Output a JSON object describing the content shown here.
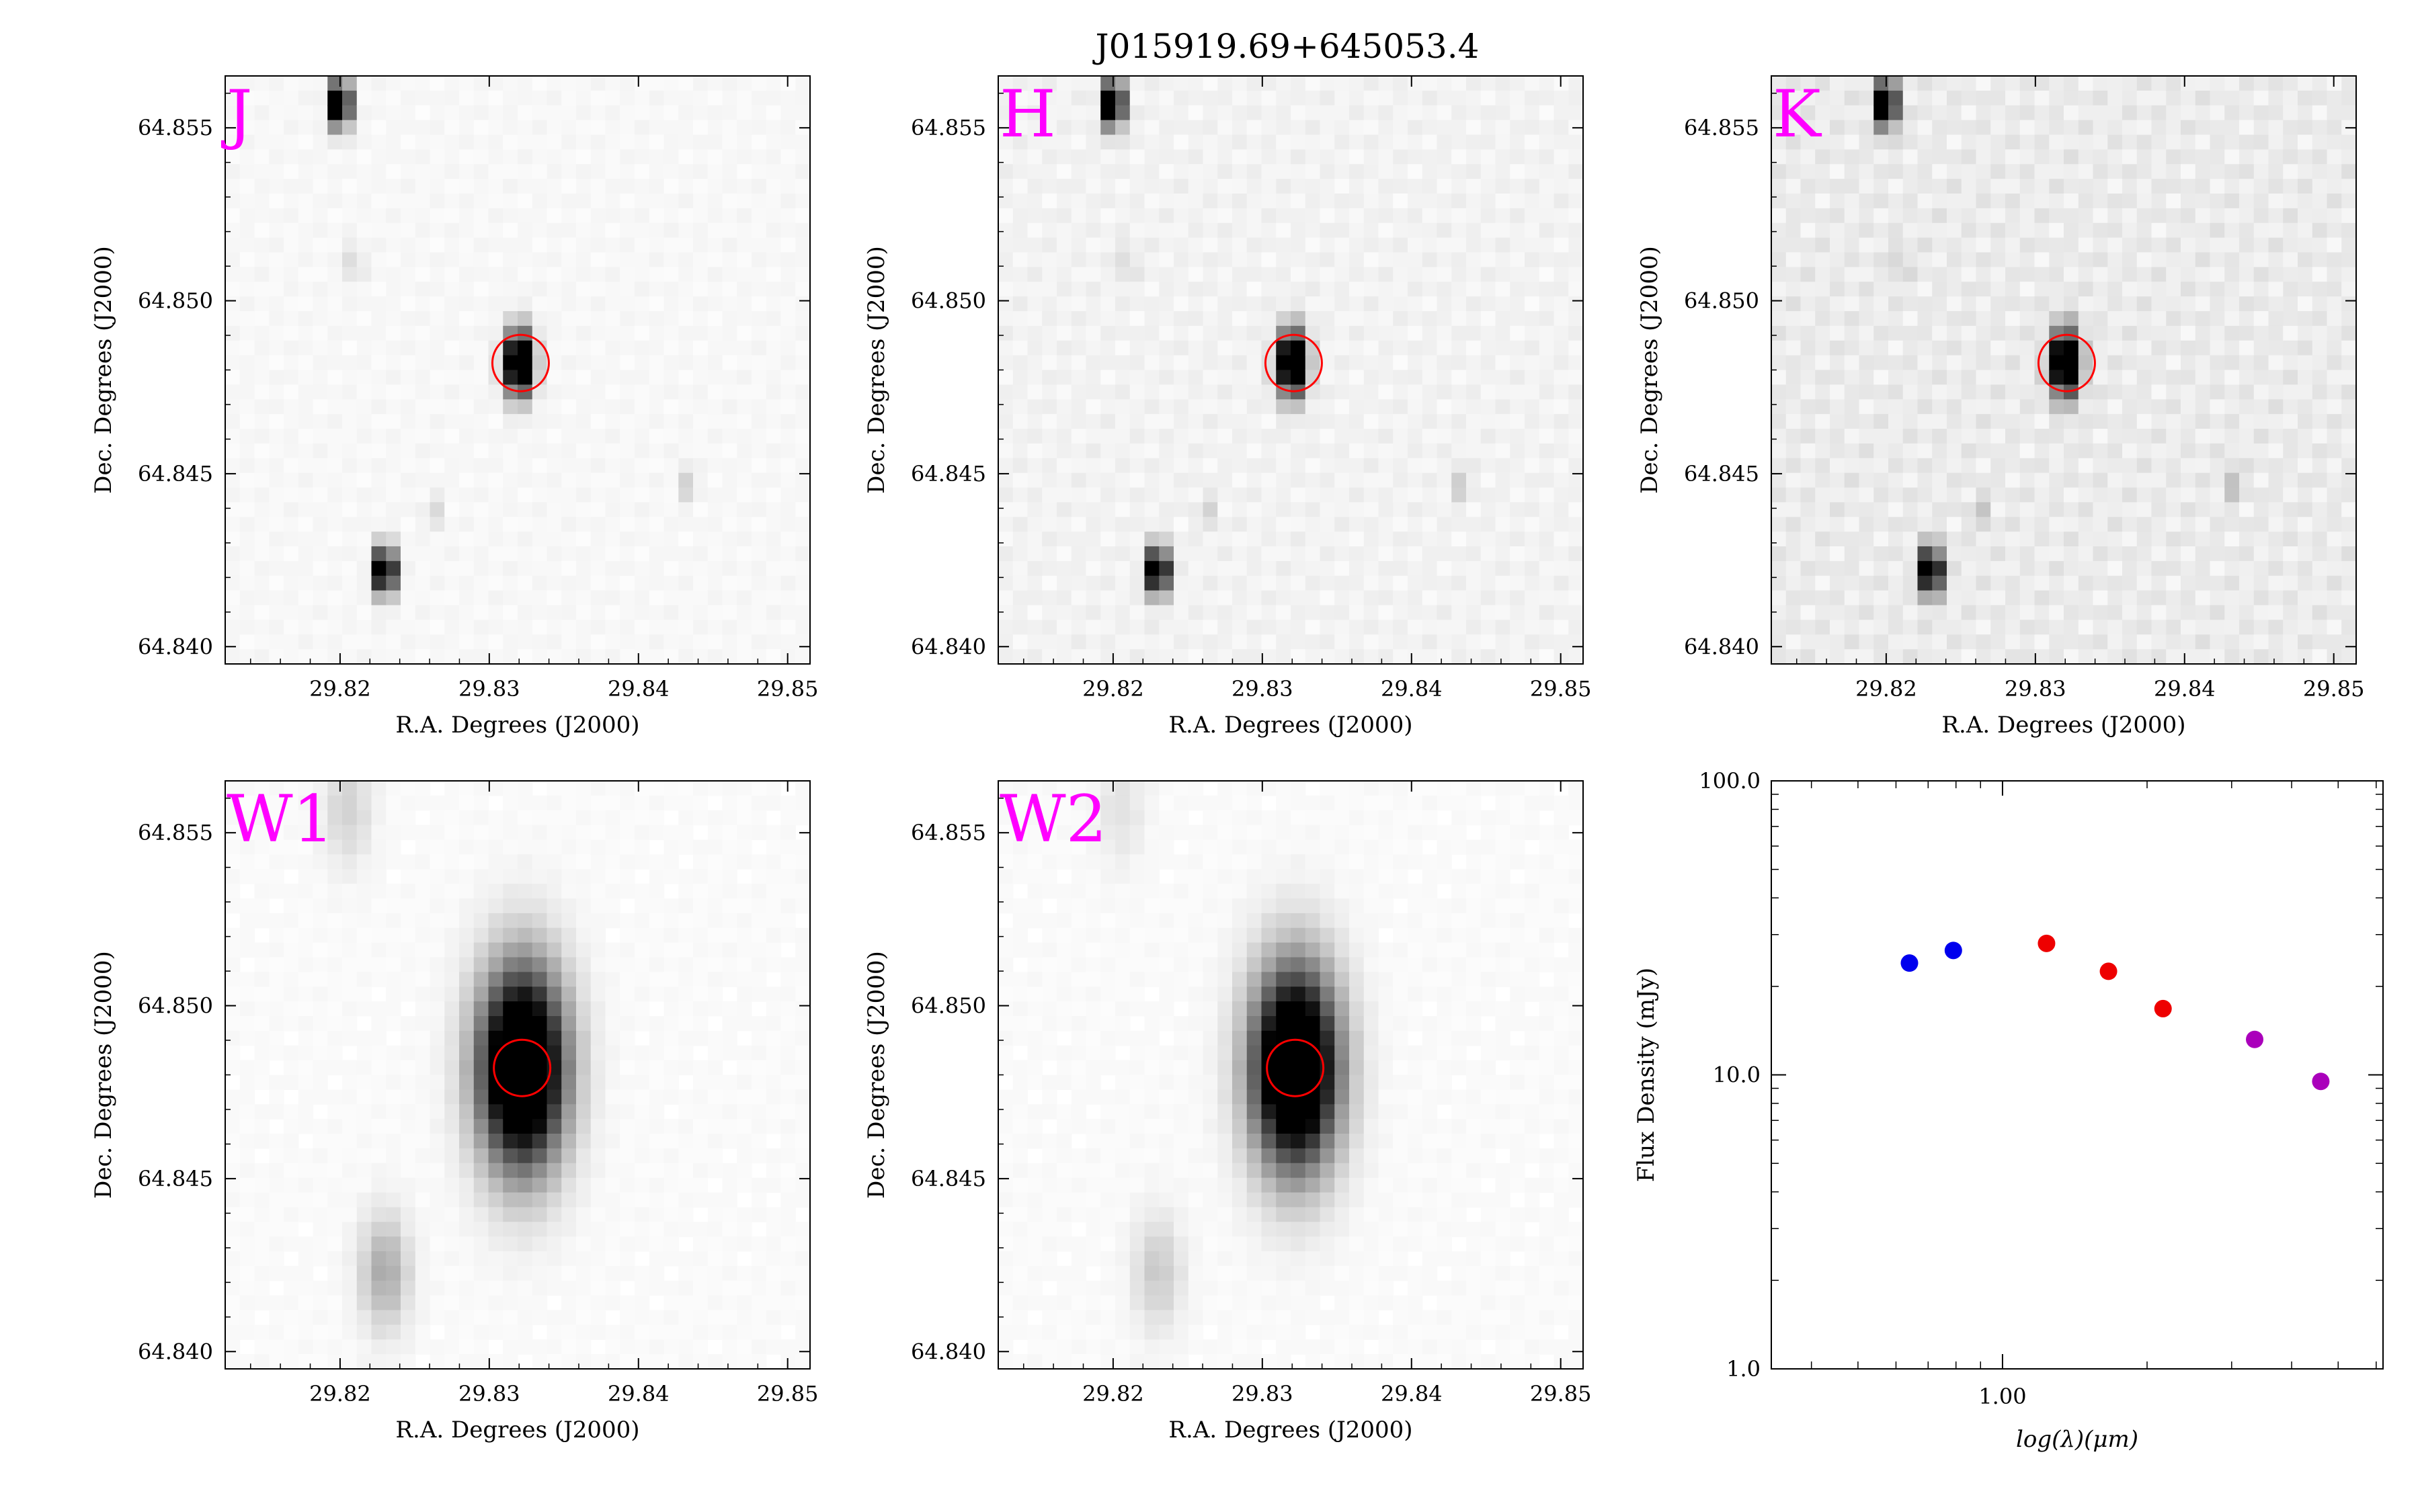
{
  "title": "J015919.69+645053.4",
  "image_panels": [
    {
      "band": "J",
      "xlabel": "R.A. Degrees (J2000)",
      "ylabel": "Dec. Degrees (J2000)",
      "xlim": [
        29.8123,
        29.8515
      ],
      "ylim": [
        64.8395,
        64.8565
      ],
      "xticks": [
        "29.82",
        "29.83",
        "29.84",
        "29.85"
      ],
      "yticks": [
        "64.840",
        "64.845",
        "64.850",
        "64.855"
      ],
      "sources": [
        {
          "ra": 29.82,
          "dec": 64.8557,
          "strength": 1.0,
          "width": 0.00065
        },
        {
          "ra": 29.823,
          "dec": 64.8422,
          "strength": 1.0,
          "width": 0.00065
        },
        {
          "ra": 29.832,
          "dec": 64.8482,
          "strength": 1.0,
          "width": 0.0009
        },
        {
          "ra": 29.821,
          "dec": 64.8511,
          "strength": 0.12,
          "width": 0.0005
        },
        {
          "ra": 29.8262,
          "dec": 64.8439,
          "strength": 0.1,
          "width": 0.0005
        },
        {
          "ra": 29.8434,
          "dec": 64.8447,
          "strength": 0.12,
          "width": 0.0005
        }
      ],
      "background": 0.03,
      "target": {
        "ra": 29.8321,
        "dec": 64.8482
      }
    },
    {
      "band": "H",
      "xlabel": "R.A. Degrees (J2000)",
      "ylabel": "Dec. Degrees (J2000)",
      "xlim": [
        29.8123,
        29.8515
      ],
      "ylim": [
        64.8395,
        64.8565
      ],
      "xticks": [
        "29.82",
        "29.83",
        "29.84",
        "29.85"
      ],
      "yticks": [
        "64.840",
        "64.845",
        "64.850",
        "64.855"
      ],
      "sources": [
        {
          "ra": 29.82,
          "dec": 64.8557,
          "strength": 1.0,
          "width": 0.00065
        },
        {
          "ra": 29.823,
          "dec": 64.8422,
          "strength": 1.0,
          "width": 0.00065
        },
        {
          "ra": 29.832,
          "dec": 64.8482,
          "strength": 1.0,
          "width": 0.0009
        },
        {
          "ra": 29.821,
          "dec": 64.8511,
          "strength": 0.1,
          "width": 0.0005
        },
        {
          "ra": 29.8262,
          "dec": 64.8439,
          "strength": 0.1,
          "width": 0.0005
        },
        {
          "ra": 29.8434,
          "dec": 64.8447,
          "strength": 0.12,
          "width": 0.0005
        }
      ],
      "background": 0.05,
      "target": {
        "ra": 29.8321,
        "dec": 64.8482
      }
    },
    {
      "band": "K",
      "xlabel": "R.A. Degrees (J2000)",
      "ylabel": "Dec. Degrees (J2000)",
      "xlim": [
        29.8123,
        29.8515
      ],
      "ylim": [
        64.8395,
        64.8565
      ],
      "xticks": [
        "29.82",
        "29.83",
        "29.84",
        "29.85"
      ],
      "yticks": [
        "64.840",
        "64.845",
        "64.850",
        "64.855"
      ],
      "sources": [
        {
          "ra": 29.82,
          "dec": 64.8557,
          "strength": 1.0,
          "width": 0.00065
        },
        {
          "ra": 29.823,
          "dec": 64.8422,
          "strength": 1.0,
          "width": 0.00065
        },
        {
          "ra": 29.832,
          "dec": 64.8482,
          "strength": 1.0,
          "width": 0.0009
        },
        {
          "ra": 29.821,
          "dec": 64.8511,
          "strength": 0.1,
          "width": 0.0005
        },
        {
          "ra": 29.8262,
          "dec": 64.8439,
          "strength": 0.12,
          "width": 0.0005
        },
        {
          "ra": 29.8434,
          "dec": 64.8447,
          "strength": 0.14,
          "width": 0.0005
        }
      ],
      "background": 0.08,
      "target": {
        "ra": 29.8321,
        "dec": 64.8482
      }
    },
    {
      "band": "W1",
      "xlabel": "R.A. Degrees (J2000)",
      "ylabel": "Dec. Degrees (J2000)",
      "xlim": [
        29.8123,
        29.8515
      ],
      "ylim": [
        64.8395,
        64.8565
      ],
      "xticks": [
        "29.82",
        "29.83",
        "29.84",
        "29.85"
      ],
      "yticks": [
        "64.840",
        "64.845",
        "64.850",
        "64.855"
      ],
      "sources": [
        {
          "ra": 29.8322,
          "dec": 64.8482,
          "strength": 1.0,
          "width": 0.0028
        },
        {
          "ra": 29.823,
          "dec": 64.8423,
          "strength": 0.2,
          "width": 0.0016
        },
        {
          "ra": 29.8205,
          "dec": 64.8557,
          "strength": 0.1,
          "width": 0.0016
        }
      ],
      "background": 0.02,
      "target": {
        "ra": 29.8322,
        "dec": 64.8482
      }
    },
    {
      "band": "W2",
      "xlabel": "R.A. Degrees (J2000)",
      "ylabel": "Dec. Degrees (J2000)",
      "xlim": [
        29.8123,
        29.8515
      ],
      "ylim": [
        64.8395,
        64.8565
      ],
      "xticks": [
        "29.82",
        "29.83",
        "29.84",
        "29.85"
      ],
      "yticks": [
        "64.840",
        "64.845",
        "64.850",
        "64.855"
      ],
      "sources": [
        {
          "ra": 29.8322,
          "dec": 64.8482,
          "strength": 1.0,
          "width": 0.0028
        },
        {
          "ra": 29.823,
          "dec": 64.8423,
          "strength": 0.12,
          "width": 0.0016
        },
        {
          "ra": 29.8205,
          "dec": 64.8557,
          "strength": 0.06,
          "width": 0.0016
        }
      ],
      "background": 0.02,
      "target": {
        "ra": 29.8322,
        "dec": 64.8482
      }
    }
  ],
  "chart_data": {
    "type": "scatter",
    "xlabel": "log(λ)(μm)",
    "ylabel": "Flux Density (mJy)",
    "xscale": "log",
    "yscale": "log",
    "xlim": [
      0.33,
      6.2
    ],
    "ylim": [
      1.0,
      100.0
    ],
    "xtick_labels": [
      "1.00"
    ],
    "ytick_labels": [
      "1.0",
      "10.0",
      "100.0"
    ],
    "points": [
      {
        "x": 0.64,
        "y": 24.0,
        "color": "#0000ee"
      },
      {
        "x": 0.79,
        "y": 26.5,
        "color": "#0000ee"
      },
      {
        "x": 1.235,
        "y": 28.0,
        "color": "#ee0000"
      },
      {
        "x": 1.662,
        "y": 22.5,
        "color": "#ee0000"
      },
      {
        "x": 2.159,
        "y": 16.8,
        "color": "#ee0000"
      },
      {
        "x": 3.35,
        "y": 13.2,
        "color": "#aa00bb"
      },
      {
        "x": 4.6,
        "y": 9.5,
        "color": "#aa00bb"
      }
    ]
  },
  "colors": {
    "band_label": "#ff00ff",
    "target_circle": "#ff0000"
  }
}
